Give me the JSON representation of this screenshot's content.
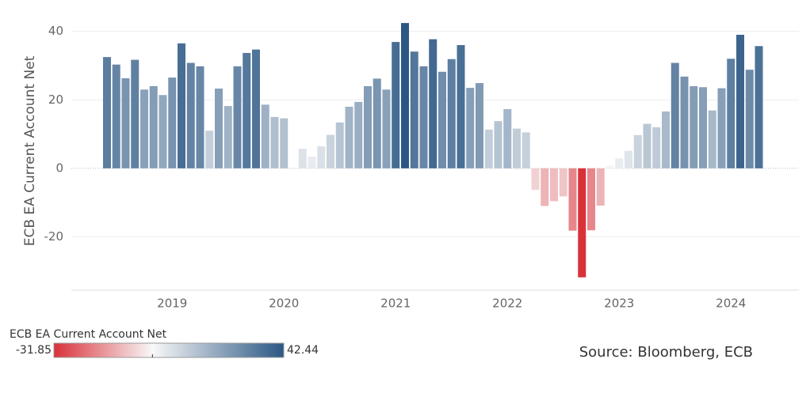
{
  "chart_data": {
    "type": "bar",
    "y_label": "ECB EA Current Account Net",
    "source": "Source: Bloomberg, ECB",
    "categories": [
      null,
      null,
      null,
      null,
      null,
      null,
      null,
      "2019",
      null,
      null,
      null,
      null,
      null,
      null,
      null,
      null,
      null,
      null,
      null,
      "2020",
      null,
      null,
      null,
      null,
      null,
      null,
      null,
      null,
      null,
      null,
      null,
      "2021",
      null,
      null,
      null,
      null,
      null,
      null,
      null,
      null,
      null,
      null,
      null,
      "2022",
      null,
      null,
      null,
      null,
      null,
      null,
      null,
      null,
      null,
      null,
      null,
      "2023",
      null,
      null,
      null,
      null,
      null,
      null,
      null,
      null,
      null,
      null,
      null,
      "2024",
      null,
      null,
      null
    ],
    "values": [
      32.5,
      30.3,
      26.3,
      31.7,
      23,
      24,
      21.4,
      26.5,
      36.5,
      30.8,
      29.8,
      11,
      23.3,
      18.2,
      29.8,
      33.7,
      34.7,
      18.6,
      15,
      14.6,
      null,
      5.7,
      3.4,
      6.4,
      9.8,
      13.4,
      18,
      19.4,
      24,
      26.2,
      23,
      36.9,
      42.44,
      34.1,
      29.8,
      37.7,
      28.2,
      31.9,
      36,
      23.5,
      24.9,
      11.3,
      13.8,
      17.3,
      11.6,
      10.5,
      -6.3,
      -11,
      -9.6,
      -8.2,
      -18.2,
      -31.85,
      -18.1,
      -10.9,
      0.8,
      2.9,
      5.1,
      9.7,
      13,
      12,
      16.6,
      30.8,
      26.8,
      24,
      23.7,
      16.9,
      23.4,
      32,
      39,
      28.8,
      35.7
    ],
    "ylim": [
      -35.6,
      45.7
    ],
    "yticks": [
      -20,
      0,
      20,
      40
    ],
    "grid": true,
    "colors": {
      "negative": "#d9313a",
      "zero": "#f8f8f8",
      "positive": "#2b5784"
    },
    "legend": {
      "title": "ECB EA Current Account Net",
      "min": -31.85,
      "max": 42.44
    }
  }
}
